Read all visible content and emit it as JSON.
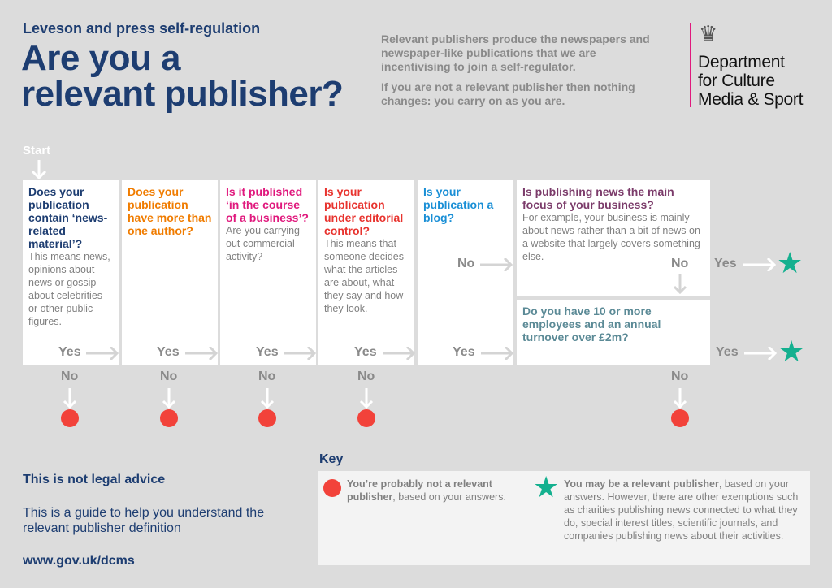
{
  "header": {
    "subtitle": "Leveson and press self-regulation",
    "title_line1": "Are you a",
    "title_line2": "relevant publisher?",
    "intro1": "Relevant publishers produce the newspapers and newspaper-like publications that we are incentivising to join a self-regulator.",
    "intro2": "If you are not a relevant publisher then nothing changes: you carry on as you are.",
    "logo": {
      "line1": "Department",
      "line2": "for Culture",
      "line3": "Media & Sport"
    }
  },
  "flow": {
    "start": "Start",
    "yes": "Yes",
    "no": "No",
    "q1": {
      "title": "Does your publication contain ‘news-related material’?",
      "desc": "This means news, opinions about news or gossip about celebrities or other public figures.",
      "color": "#1d3d71"
    },
    "q2": {
      "title": "Does your publication have more than one author?",
      "color": "#f07c00"
    },
    "q3": {
      "title": "Is it published ‘in the course of a business’?",
      "desc": "Are you carrying out commercial activity?",
      "color": "#e0197d"
    },
    "q4": {
      "title": "Is your publication under editorial control?",
      "desc": "This means that someone decides what the articles are about, what they say and how they look.",
      "color": "#e8332e"
    },
    "q5": {
      "title": "Is your publication a blog?",
      "color": "#1a8fd6"
    },
    "q6": {
      "title": "Is publishing news the main focus of your business?",
      "desc": "For example, your business is mainly about news rather than a bit of news on a website that largely covers something else.",
      "color": "#7b3b6a"
    },
    "q7": {
      "title": "Do you have 10 or more employees and an annual turnover over £2m?",
      "color": "#5b8a96"
    }
  },
  "footer": {
    "disclaimer": "This is not legal advice",
    "guide": "This is a guide to help you understand the relevant publisher definition",
    "url": "www.gov.uk/dcms"
  },
  "key": {
    "title": "Key",
    "not_bold": "You’re probably not a relevant publisher",
    "not_rest": ", based on your answers.",
    "may_bold": "You may be a relevant publisher",
    "may_rest": ", based on your answers. However, there are other exemptions such as charities publishing news connected to what they do, special interest titles, scientific journals, and companies publishing news about their activities."
  },
  "colors": {
    "red": "#f2423a",
    "green": "#14b08f",
    "navy": "#1d3d71"
  }
}
